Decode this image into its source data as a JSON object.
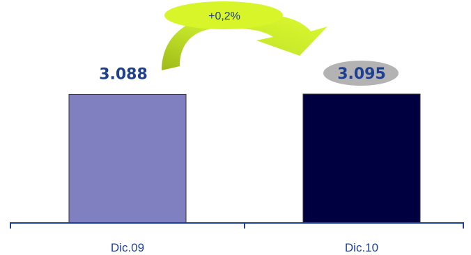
{
  "chart_data": {
    "type": "bar",
    "categories": [
      "Dic.09",
      "Dic.10"
    ],
    "values": [
      3088,
      3095
    ],
    "value_labels": [
      "3.088",
      "3.095"
    ],
    "growth_label": "+0,2%",
    "colors": [
      "#8080c0",
      "#000040"
    ],
    "axis_color": "#1f3f91",
    "label_color": "#1f3f91",
    "arrow_colors": [
      "#a6c21e",
      "#d8f52a"
    ],
    "highlight_color": "#b3b3b3",
    "grid": false
  }
}
